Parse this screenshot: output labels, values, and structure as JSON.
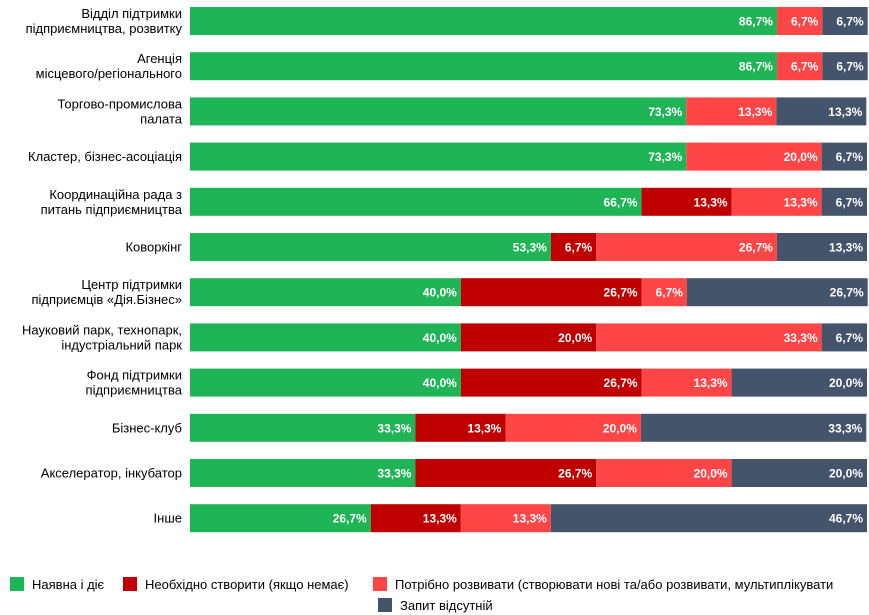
{
  "chart_data": {
    "type": "bar",
    "orientation": "horizontal",
    "stacked": "percent",
    "categories": [
      [
        "Відділ підтримки",
        "підприємництва, розвитку"
      ],
      [
        "Агенція",
        "місцевого/регіонального"
      ],
      [
        "Торгово-промислова",
        "палата"
      ],
      [
        "Кластер, бізнес-асоціація"
      ],
      [
        "Координаційна рада з",
        "питань підприємництва"
      ],
      [
        "Коворкінг"
      ],
      [
        "Центр підтримки",
        "підприємців «Дія.Бізнес»"
      ],
      [
        "Науковий парк, технопарк,",
        "індустріальний парк"
      ],
      [
        "Фонд підтримки",
        "підприємництва"
      ],
      [
        "Бізнес-клуб"
      ],
      [
        "Акселератор, інкубатор"
      ],
      [
        "Інше"
      ]
    ],
    "series": [
      {
        "name": "Наявна і діє",
        "color": "#1fb556",
        "values": [
          86.7,
          86.7,
          73.3,
          73.3,
          66.7,
          53.3,
          40.0,
          40.0,
          40.0,
          33.3,
          33.3,
          26.7
        ],
        "labels": [
          "86,7%",
          "86,7%",
          "73,3%",
          "73,3%",
          "66,7%",
          "53,3%",
          "40,0%",
          "40,0%",
          "40,0%",
          "33,3%",
          "33,3%",
          "26,7%"
        ]
      },
      {
        "name": "Необхідно створити (якщо немає)",
        "color": "#c00000",
        "values": [
          0,
          0,
          0,
          0,
          13.3,
          6.7,
          26.7,
          20.0,
          26.7,
          13.3,
          26.7,
          13.3
        ],
        "labels": [
          "",
          "",
          "",
          "",
          "13,3%",
          "6,7%",
          "26,7%",
          "20,0%",
          "26,7%",
          "13,3%",
          "26,7%",
          "13,3%"
        ]
      },
      {
        "name": "Потрібно розвивати (створювати нові та/або розвивати, мультиплікувати",
        "color": "#ff4545",
        "values": [
          6.7,
          6.7,
          13.3,
          20.0,
          13.3,
          26.7,
          6.7,
          33.3,
          13.3,
          20.0,
          20.0,
          13.3
        ],
        "labels": [
          "6,7%",
          "6,7%",
          "13,3%",
          "20,0%",
          "13,3%",
          "26,7%",
          "6,7%",
          "33,3%",
          "13,3%",
          "20,0%",
          "20,0%",
          "13,3%"
        ]
      },
      {
        "name": "Запит відсутній",
        "color": "#44546a",
        "values": [
          6.7,
          6.7,
          13.3,
          6.7,
          6.7,
          13.3,
          26.7,
          6.7,
          20.0,
          33.3,
          20.0,
          46.7
        ],
        "labels": [
          "6,7%",
          "6,7%",
          "13,3%",
          "6,7%",
          "6,7%",
          "13,3%",
          "26,7%",
          "6,7%",
          "20,0%",
          "33,3%",
          "20,0%",
          "46,7%"
        ]
      }
    ],
    "xlim": [
      0,
      100
    ],
    "grid": false,
    "legend_position": "bottom"
  }
}
